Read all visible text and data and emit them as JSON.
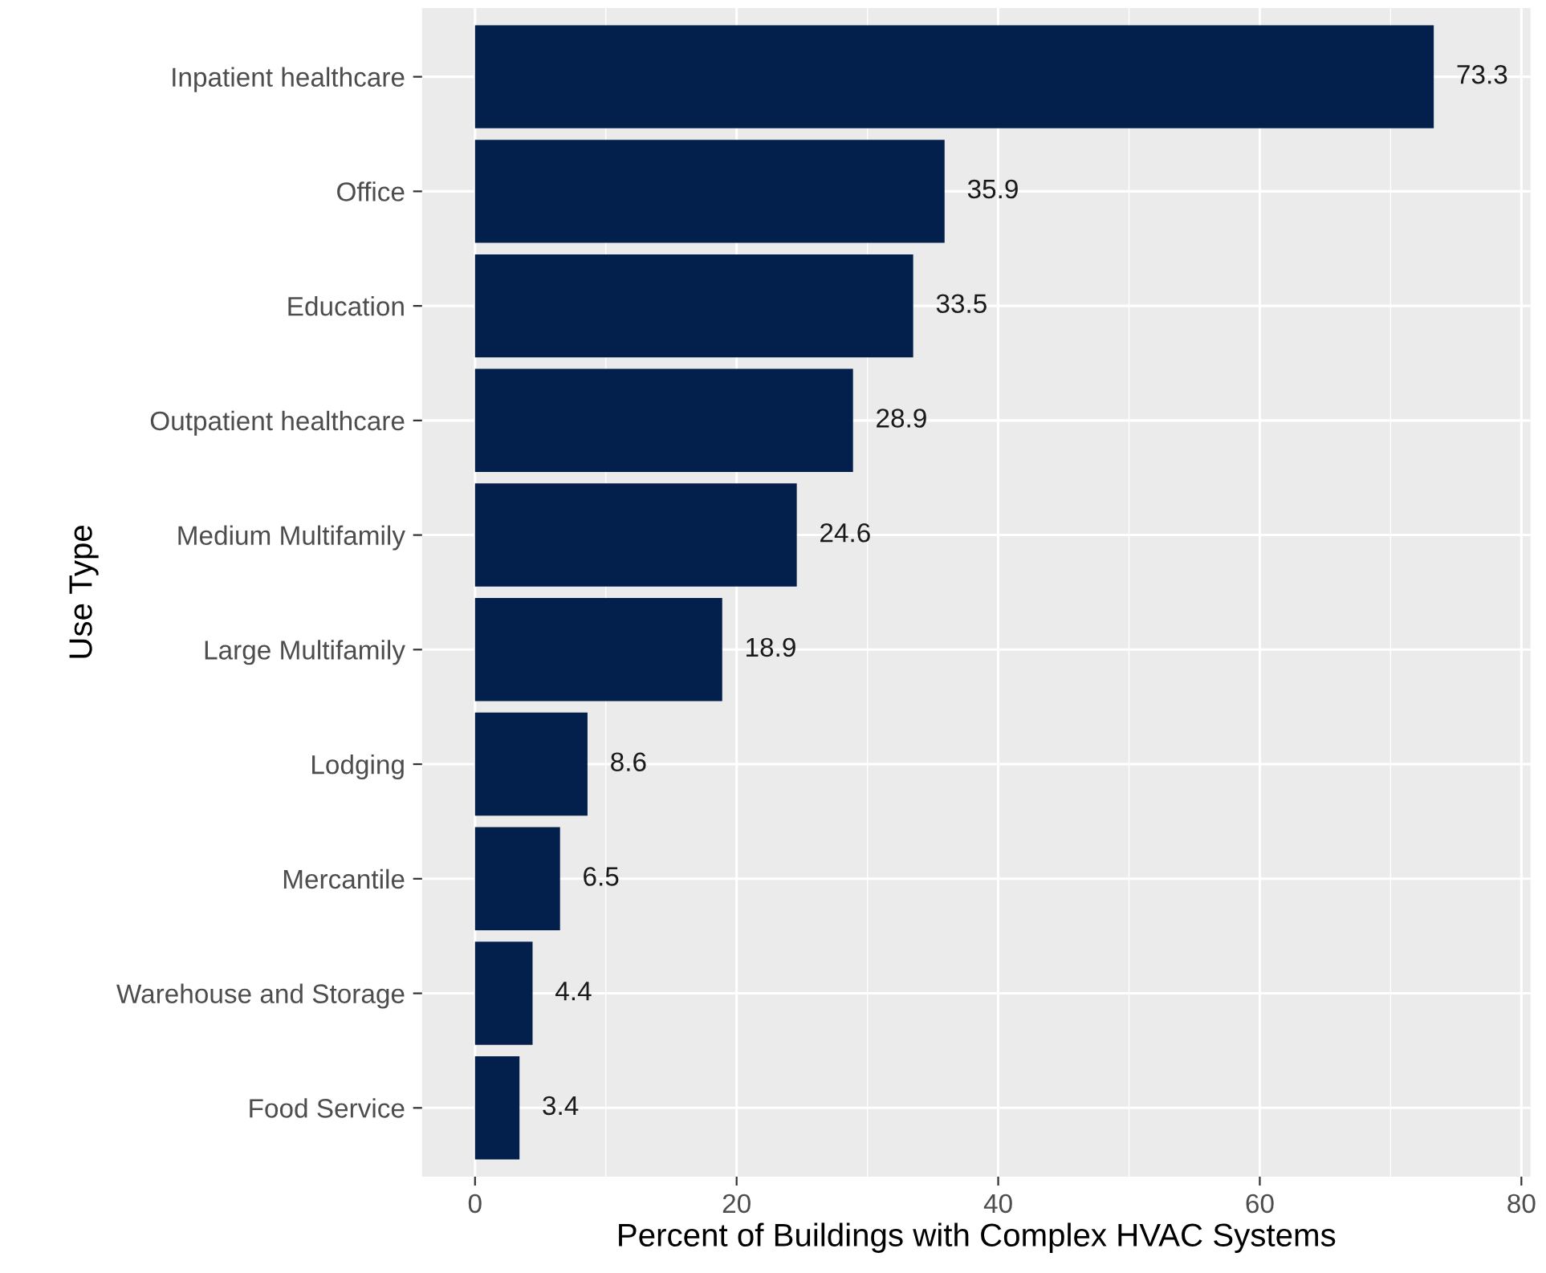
{
  "chart_data": {
    "type": "bar",
    "orientation": "horizontal",
    "xlabel": "Percent of Buildings with Complex HVAC Systems",
    "ylabel": "Use Type",
    "categories": [
      "Inpatient healthcare",
      "Office",
      "Education",
      "Outpatient healthcare",
      "Medium Multifamily",
      "Large Multifamily",
      "Lodging",
      "Mercantile",
      "Warehouse and Storage",
      "Food Service"
    ],
    "values": [
      73.3,
      35.9,
      33.5,
      28.9,
      24.6,
      18.9,
      8.6,
      6.5,
      4.4,
      3.4
    ],
    "color": "#031f4b",
    "data_labels": true,
    "xlim": [
      -4.05,
      80.7
    ],
    "xticks": [
      0,
      20,
      40,
      60,
      80
    ],
    "grid": true
  }
}
